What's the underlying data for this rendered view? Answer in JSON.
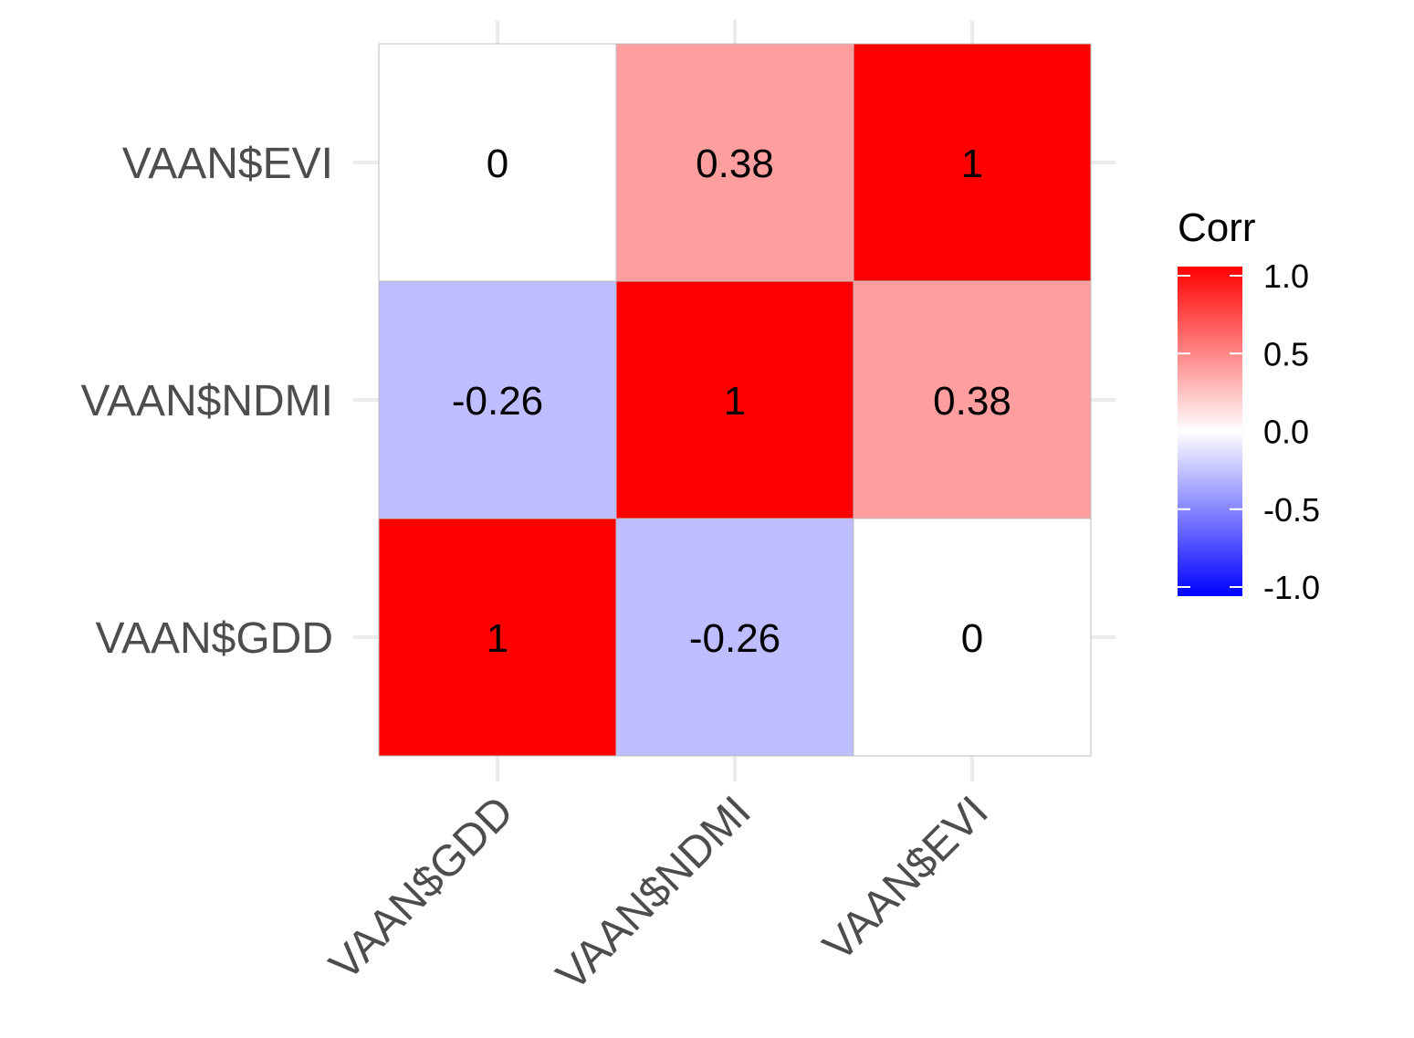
{
  "chart_data": {
    "type": "heatmap",
    "x_categories": [
      "VAAN$GDD",
      "VAAN$NDMI",
      "VAAN$EVI"
    ],
    "y_categories": [
      "VAAN$GDD",
      "VAAN$NDMI",
      "VAAN$EVI"
    ],
    "matrix": [
      [
        1,
        -0.26,
        0
      ],
      [
        -0.26,
        1,
        0.38
      ],
      [
        0,
        0.38,
        1
      ]
    ],
    "cell_labels": [
      [
        "1",
        "-0.26",
        "0"
      ],
      [
        "-0.26",
        "1",
        "0.38"
      ],
      [
        "0",
        "0.38",
        "1"
      ]
    ],
    "legend": {
      "title": "Corr",
      "placement": "right",
      "range": [
        -1,
        1
      ],
      "ticks": [
        1.0,
        0.5,
        0.0,
        -0.5,
        -1.0
      ],
      "tick_labels": [
        "1.0",
        "0.5",
        "0.0",
        "-0.5",
        "-1.0"
      ]
    },
    "colors": {
      "low": "#0000FF",
      "mid": "#FFFFFF",
      "high": "#FF0000",
      "grid": "#ebebeb"
    },
    "grid": true
  }
}
